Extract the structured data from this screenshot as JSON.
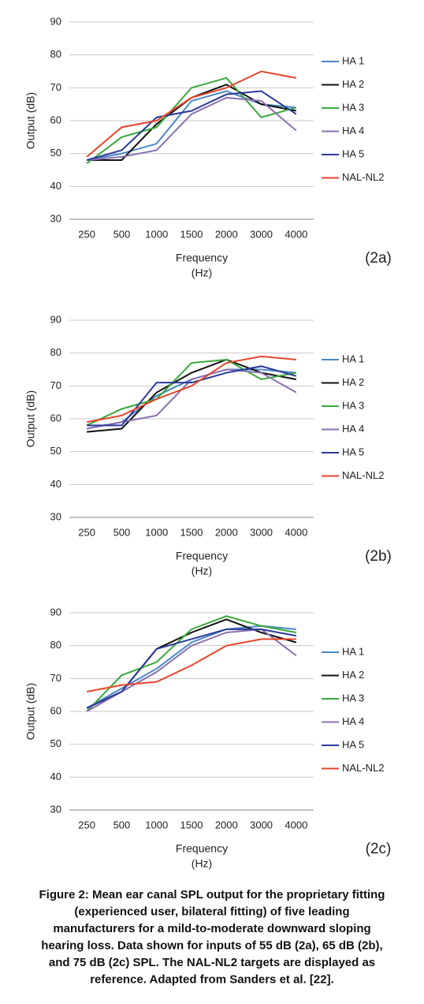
{
  "chart_data": [
    {
      "type": "line",
      "x_label": [
        "Frequency",
        "(Hz)"
      ],
      "y_label": "Output (dB)",
      "panel_label": "(2a)",
      "categories": [
        "250",
        "500",
        "1000",
        "1500",
        "2000",
        "3000",
        "4000"
      ],
      "ylim": [
        30,
        90
      ],
      "yticks": [
        30,
        40,
        50,
        60,
        70,
        80,
        90
      ],
      "grid": true,
      "series": [
        {
          "name": "HA 1",
          "color": "#4a86c8",
          "values": [
            48,
            50,
            53,
            66,
            69,
            65,
            64
          ]
        },
        {
          "name": "HA 2",
          "color": "#111111",
          "values": [
            48,
            48,
            59,
            67,
            71,
            65,
            63
          ]
        },
        {
          "name": "HA 3",
          "color": "#3aa83a",
          "values": [
            47,
            55,
            58,
            70,
            73,
            61,
            64
          ]
        },
        {
          "name": "HA 4",
          "color": "#8a72b0",
          "values": [
            48,
            49,
            51,
            62,
            67,
            66,
            57
          ]
        },
        {
          "name": "HA 5",
          "color": "#2b3a9a",
          "values": [
            48,
            51,
            61,
            63,
            68,
            69,
            62
          ]
        },
        {
          "name": "NAL-NL2",
          "color": "#e8452a",
          "values": [
            49,
            58,
            60,
            67,
            70,
            75,
            73
          ]
        }
      ]
    },
    {
      "type": "line",
      "x_label": [
        "Frequency",
        "(Hz)"
      ],
      "y_label": "Output (dB)",
      "panel_label": "(2b)",
      "categories": [
        "250",
        "500",
        "1000",
        "1500",
        "2000",
        "3000",
        "4000"
      ],
      "ylim": [
        30,
        90
      ],
      "yticks": [
        30,
        40,
        50,
        60,
        70,
        80,
        90
      ],
      "grid": true,
      "series": [
        {
          "name": "HA 1",
          "color": "#4a86c8",
          "values": [
            57,
            59,
            67,
            72,
            75,
            75,
            74
          ]
        },
        {
          "name": "HA 2",
          "color": "#111111",
          "values": [
            56,
            57,
            68,
            74,
            78,
            74,
            72
          ]
        },
        {
          "name": "HA 3",
          "color": "#3aa83a",
          "values": [
            58,
            63,
            66,
            77,
            78,
            72,
            74
          ]
        },
        {
          "name": "HA 4",
          "color": "#8a72b0",
          "values": [
            57,
            59,
            61,
            72,
            75,
            74,
            68
          ]
        },
        {
          "name": "HA 5",
          "color": "#2b3a9a",
          "values": [
            58,
            58,
            71,
            71,
            74,
            76,
            73
          ]
        },
        {
          "name": "NAL-NL2",
          "color": "#e8452a",
          "values": [
            59,
            61,
            66,
            70,
            77,
            79,
            78
          ]
        }
      ]
    },
    {
      "type": "line",
      "x_label": [
        "Frequency",
        "(Hz)"
      ],
      "y_label": "Output (dB)",
      "panel_label": "(2c)",
      "categories": [
        "250",
        "500",
        "1000",
        "1500",
        "2000",
        "3000",
        "4000"
      ],
      "ylim": [
        30,
        90
      ],
      "yticks": [
        30,
        40,
        50,
        60,
        70,
        80,
        90
      ],
      "grid": true,
      "series": [
        {
          "name": "HA 1",
          "color": "#4a86c8",
          "values": [
            61,
            67,
            73,
            81,
            85,
            86,
            85
          ]
        },
        {
          "name": "HA 2",
          "color": "#111111",
          "values": [
            61,
            66,
            79,
            84,
            88,
            84,
            81
          ]
        },
        {
          "name": "HA 3",
          "color": "#3aa83a",
          "values": [
            60,
            71,
            75,
            85,
            89,
            86,
            84
          ]
        },
        {
          "name": "HA 4",
          "color": "#8a72b0",
          "values": [
            60,
            66,
            72,
            80,
            84,
            85,
            77
          ]
        },
        {
          "name": "HA 5",
          "color": "#2b3a9a",
          "values": [
            61,
            66,
            79,
            82,
            85,
            85,
            83
          ]
        },
        {
          "name": "NAL-NL2",
          "color": "#e8452a",
          "values": [
            66,
            68,
            69,
            74,
            80,
            82,
            82
          ]
        }
      ]
    }
  ],
  "caption": [
    "Figure 2: Mean ear canal SPL output for the proprietary fitting",
    "(experienced user, bilateral fitting) of five leading",
    "manufacturers for a mild-to-moderate downward sloping",
    "hearing loss. Data shown for inputs of 55 dB (2a), 65 dB (2b),",
    "and 75 dB (2c) SPL. The NAL-NL2 targets are displayed as",
    "reference. Adapted from Sanders et al. [22]."
  ]
}
